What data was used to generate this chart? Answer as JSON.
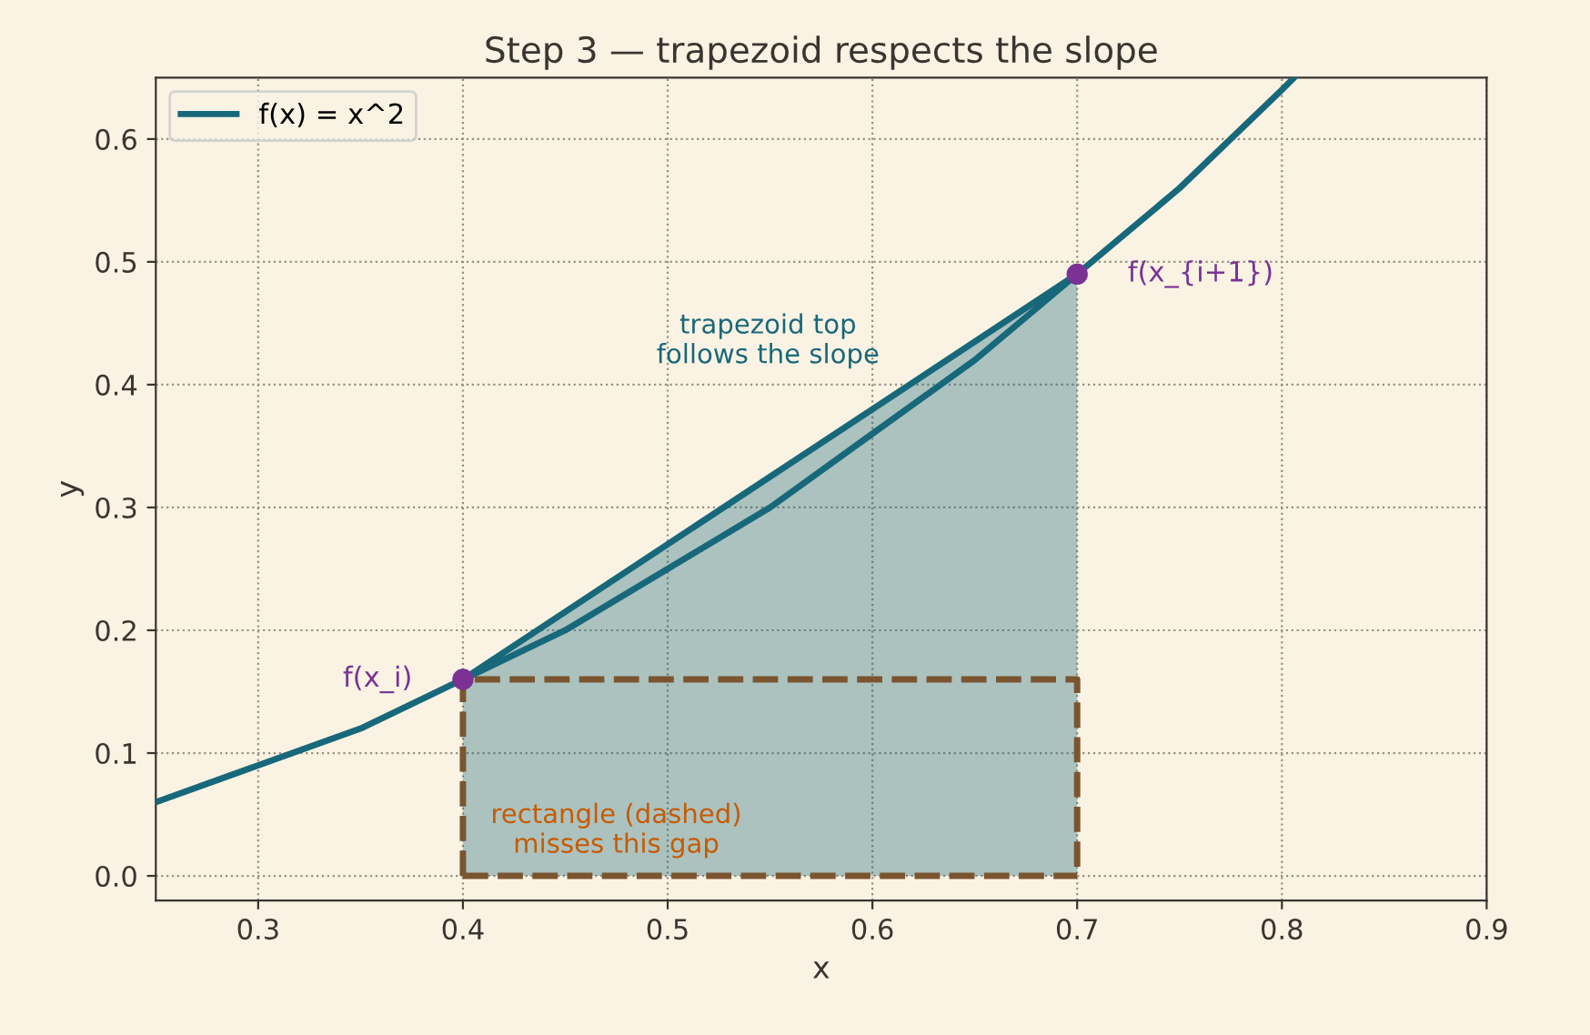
{
  "chart_data": {
    "type": "line",
    "title": "Step 3 — trapezoid respects the slope",
    "xlabel": "x",
    "ylabel": "y",
    "xlim": [
      0.25,
      0.9
    ],
    "ylim": [
      -0.02,
      0.65
    ],
    "xticks": [
      0.3,
      0.4,
      0.5,
      0.6,
      0.7,
      0.8,
      0.9
    ],
    "yticks": [
      {
        "value": 0,
        "label": "0.0"
      },
      0.1,
      0.2,
      0.3,
      0.4,
      0.5,
      0.6
    ],
    "grid": true,
    "legend": "top left",
    "series": [
      {
        "type": "area",
        "color": "#17687a",
        "x": [
          0.4,
          0.7
        ],
        "values": [
          0.16,
          0.49
        ]
      },
      {
        "name": "f(x) = x^2",
        "color": "#17687a",
        "x": [
          0.25,
          0.3,
          0.35,
          0.4,
          0.45,
          0.5,
          0.55,
          0.6,
          0.65,
          0.7,
          0.75,
          0.8,
          0.806
        ],
        "values": [
          0.06,
          0.09,
          0.12,
          0.16,
          0.2,
          0.25,
          0.3,
          0.36,
          0.42,
          0.49,
          0.56,
          0.64,
          0.65
        ]
      },
      {
        "color": "#7a5530",
        "line_style": "dashed",
        "x": [
          0.4,
          0.4,
          0.7,
          0.7
        ],
        "values": [
          0,
          0.16,
          0.16,
          0
        ]
      },
      {
        "color": "#7a5530",
        "line_style": "dashed",
        "x": [
          0.4,
          0.7
        ],
        "values": [
          0,
          0
        ]
      },
      {
        "type": "scatter",
        "color": "#7b3294",
        "marker": "circle",
        "x": [
          0.4,
          0.7
        ],
        "values": [
          0.16,
          0.49
        ]
      }
    ],
    "annotations": [
      {
        "text": "f(x_i)",
        "x": 0.4,
        "y": 0.16
      },
      {
        "text": "f(x_{i+1})",
        "x": 0.7,
        "y": 0.49
      },
      "trapezoid top\nfollows the slope",
      "rectangle (dashed)\nmisses this gap"
    ]
  }
}
